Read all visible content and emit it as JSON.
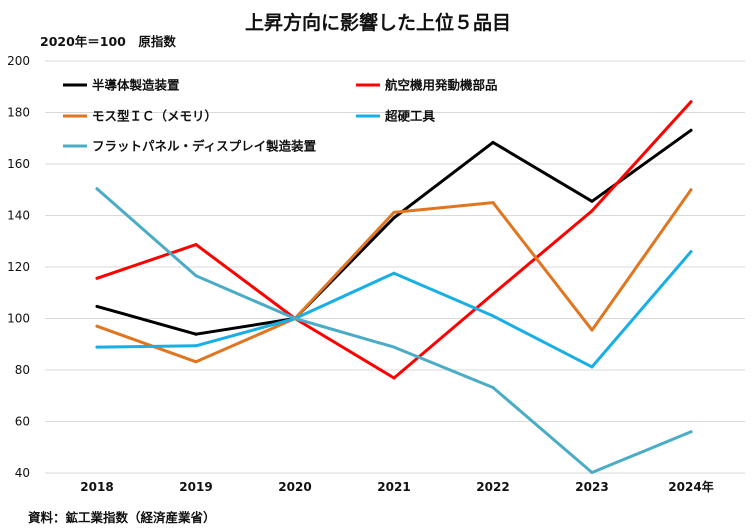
{
  "title": "上昇方向に影響した上位５品目",
  "unit_note": "2020年＝100　原指数",
  "source_note": "資料：鉱工業指数（経済産業省）",
  "chart_data": {
    "type": "line",
    "title": "上昇方向に影響した上位５品目",
    "xlabel": "",
    "ylabel": "",
    "categories": [
      "2018",
      "2019",
      "2020",
      "2021",
      "2022",
      "2023",
      "2024年"
    ],
    "ylim": [
      40,
      200
    ],
    "yticks": [
      40,
      60,
      80,
      100,
      120,
      140,
      160,
      180,
      200
    ],
    "grid": "horizontal",
    "legend_position": "top",
    "series": [
      {
        "name": "半導体製造装置",
        "color": "#000000",
        "values": [
          104.7,
          93.9,
          100.0,
          139.1,
          168.4,
          145.5,
          173.1
        ]
      },
      {
        "name": "航空機用発動機部品",
        "color": "#ff0000",
        "values": [
          115.6,
          128.7,
          100.0,
          76.9,
          109.5,
          141.8,
          184.2
        ]
      },
      {
        "name": "モス型ＩＣ（メモリ）",
        "color": "#e0761f",
        "values": [
          97.0,
          83.2,
          100.0,
          141.2,
          145.0,
          95.5,
          150.0
        ]
      },
      {
        "name": "超硬工具",
        "color": "#18aee6",
        "values": [
          88.9,
          89.4,
          100.0,
          117.6,
          101.0,
          81.2,
          126.0
        ]
      },
      {
        "name": "フラットパネル・ディスプレイ製造装置",
        "color": "#4bacc6",
        "values": [
          150.4,
          116.6,
          100.0,
          88.9,
          73.2,
          40.2,
          56.0
        ]
      }
    ]
  }
}
